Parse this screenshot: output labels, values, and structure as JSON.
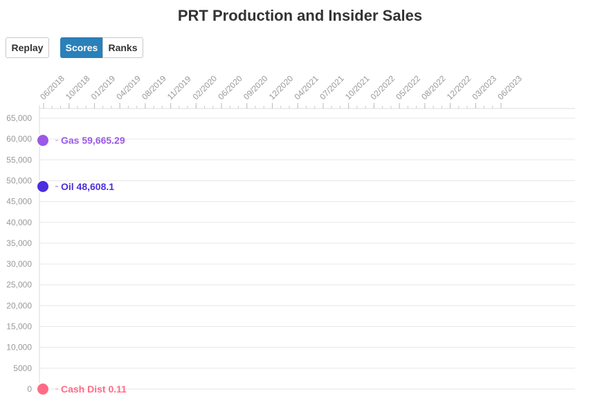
{
  "header": {
    "title": "PRT Production and Insider Sales"
  },
  "controls": {
    "replay_label": "Replay",
    "scores_label": "Scores",
    "ranks_label": "Ranks",
    "active": "Scores"
  },
  "chart_data": {
    "type": "line",
    "title": "PRT Production and Insider Sales",
    "xlabel": "",
    "ylabel": "",
    "x_ticks": [
      "06/2018",
      "10/2018",
      "01/2019",
      "04/2019",
      "08/2019",
      "11/2019",
      "02/2020",
      "06/2020",
      "09/2020",
      "12/2020",
      "04/2021",
      "07/2021",
      "10/2021",
      "02/2022",
      "05/2022",
      "08/2022",
      "12/2022",
      "03/2023",
      "06/2023"
    ],
    "y_ticks": [
      0,
      5000,
      10000,
      15000,
      20000,
      25000,
      30000,
      35000,
      40000,
      45000,
      50000,
      55000,
      60000,
      65000
    ],
    "y_tick_labels": [
      "0",
      "5000",
      "10,000",
      "15,000",
      "20,000",
      "25,000",
      "30,000",
      "35,000",
      "40,000",
      "45,000",
      "50,000",
      "55,000",
      "60,000",
      "65,000"
    ],
    "ylim": [
      0,
      65000
    ],
    "grid": true,
    "series": [
      {
        "name": "Gas",
        "color": "#9b59e6",
        "x": [
          "06/2018"
        ],
        "values": [
          59665.29
        ],
        "label": "Gas 59,665.29"
      },
      {
        "name": "Oil",
        "color": "#4a2ee0",
        "x": [
          "06/2018"
        ],
        "values": [
          48608.1
        ],
        "label": "Oil 48,608.1"
      },
      {
        "name": "Cash Dist",
        "color": "#ff6b86",
        "x": [
          "06/2018"
        ],
        "values": [
          0.11
        ],
        "label": "Cash Dist 0.11"
      }
    ]
  }
}
